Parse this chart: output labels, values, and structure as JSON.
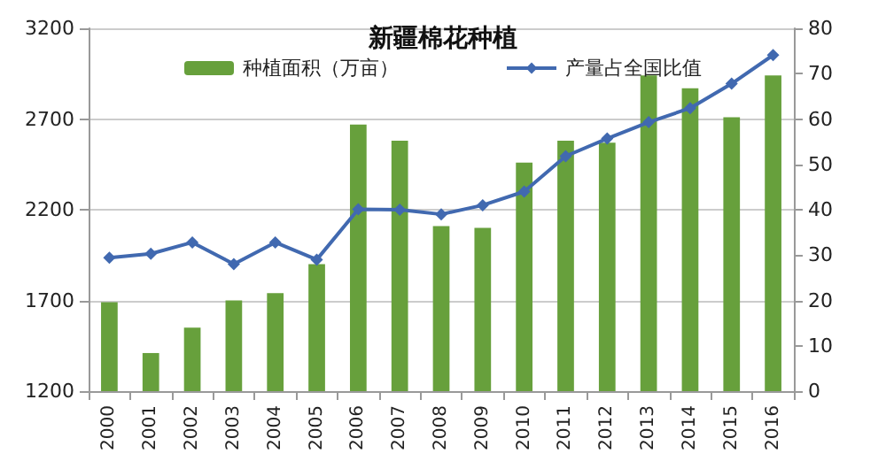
{
  "chart_data": {
    "type": "bar",
    "title": "新疆棉花种植",
    "categories": [
      "2000",
      "2001",
      "2002",
      "2003",
      "2004",
      "2005",
      "2006",
      "2007",
      "2008",
      "2009",
      "2010",
      "2011",
      "2012",
      "2013",
      "2014",
      "2015",
      "2016"
    ],
    "series": [
      {
        "name": "种植面积（万亩）",
        "color": "#67a03c",
        "values": [
          1690,
          1410,
          1550,
          1700,
          1740,
          1900,
          2670,
          2580,
          2110,
          2100,
          2460,
          2580,
          2570,
          2940,
          2870,
          2710,
          2940
        ]
      },
      {
        "name": "产量占全国比值",
        "type": "line",
        "axis": "y2",
        "color": "#4169b0",
        "marker": "diamond",
        "values": [
          29.4,
          30.3,
          32.8,
          28.0,
          32.8,
          29.0,
          40.1,
          40.0,
          39.0,
          41.0,
          44.0,
          51.8,
          55.7,
          59.3,
          62.4,
          67.8,
          74.1
        ]
      }
    ],
    "ylim": [
      1200,
      3200
    ],
    "yticks": [
      1200,
      1700,
      2200,
      2700,
      3200
    ],
    "y2lim": [
      0,
      80
    ],
    "y2ticks": [
      0,
      10,
      20,
      30,
      40,
      50,
      60,
      70,
      80
    ],
    "grid": "y",
    "legend": "top"
  }
}
